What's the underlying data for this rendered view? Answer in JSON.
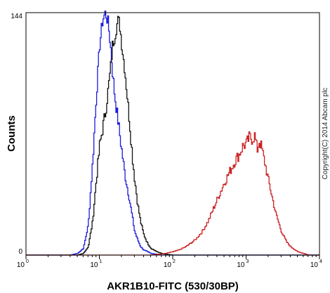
{
  "chart_data": {
    "type": "line",
    "title": "",
    "xlabel": "AKR1B10-FITC (530/30BP)",
    "ylabel": "Counts",
    "xscale": "log",
    "xlim": [
      1,
      10000
    ],
    "ylim": [
      0,
      144
    ],
    "x_ticks": [
      {
        "value": 1,
        "base": "10",
        "exp": "0"
      },
      {
        "value": 10,
        "base": "10",
        "exp": "1"
      },
      {
        "value": 100,
        "base": "10",
        "exp": "2"
      },
      {
        "value": 1000,
        "base": "10",
        "exp": "3"
      },
      {
        "value": 10000,
        "base": "10",
        "exp": "4"
      }
    ],
    "y_ticks": [
      "0",
      "144"
    ],
    "grid": false,
    "series": [
      {
        "color": "#1a1adb",
        "x": [
          4,
          5,
          6,
          7,
          8,
          9,
          10,
          11,
          12,
          13,
          14,
          15,
          16,
          18,
          20,
          22,
          25,
          28,
          30,
          33,
          36,
          40,
          45,
          50,
          60,
          70,
          100,
          1000,
          8000
        ],
        "values": [
          0,
          1,
          4,
          18,
          55,
          95,
          125,
          140,
          144,
          138,
          125,
          108,
          95,
          78,
          62,
          48,
          35,
          22,
          14,
          9,
          5,
          3,
          2,
          1,
          0.5,
          0,
          0,
          0,
          0
        ]
      },
      {
        "color": "#111111",
        "x": [
          5,
          6,
          7,
          8,
          9,
          10,
          12,
          14,
          15,
          16,
          17,
          18,
          19,
          20,
          22,
          24,
          26,
          28,
          30,
          33,
          36,
          40,
          45,
          50,
          55,
          60,
          70,
          80,
          100,
          1000,
          8000
        ],
        "values": [
          0,
          1,
          5,
          20,
          45,
          65,
          85,
          110,
          125,
          130,
          136,
          140,
          135,
          125,
          110,
          92,
          75,
          58,
          45,
          30,
          20,
          12,
          7,
          4,
          3,
          2,
          1,
          0.5,
          0,
          0,
          0
        ]
      },
      {
        "color": "#cc2222",
        "x": [
          1,
          50,
          80,
          100,
          120,
          150,
          200,
          250,
          300,
          350,
          400,
          500,
          600,
          700,
          800,
          900,
          1000,
          1100,
          1200,
          1300,
          1400,
          1500,
          1600,
          1800,
          2000,
          2200,
          2500,
          3000,
          3500,
          4000,
          5000,
          6000,
          7000
        ],
        "values": [
          0,
          0,
          1,
          2,
          3,
          5,
          9,
          14,
          20,
          27,
          33,
          43,
          50,
          56,
          60,
          65,
          66,
          70,
          69,
          71,
          62,
          68,
          64,
          54,
          44,
          36,
          25,
          14,
          8,
          5,
          2,
          1,
          0
        ]
      }
    ],
    "annotation": "Copyright(C) 2014 Abcam plc"
  }
}
